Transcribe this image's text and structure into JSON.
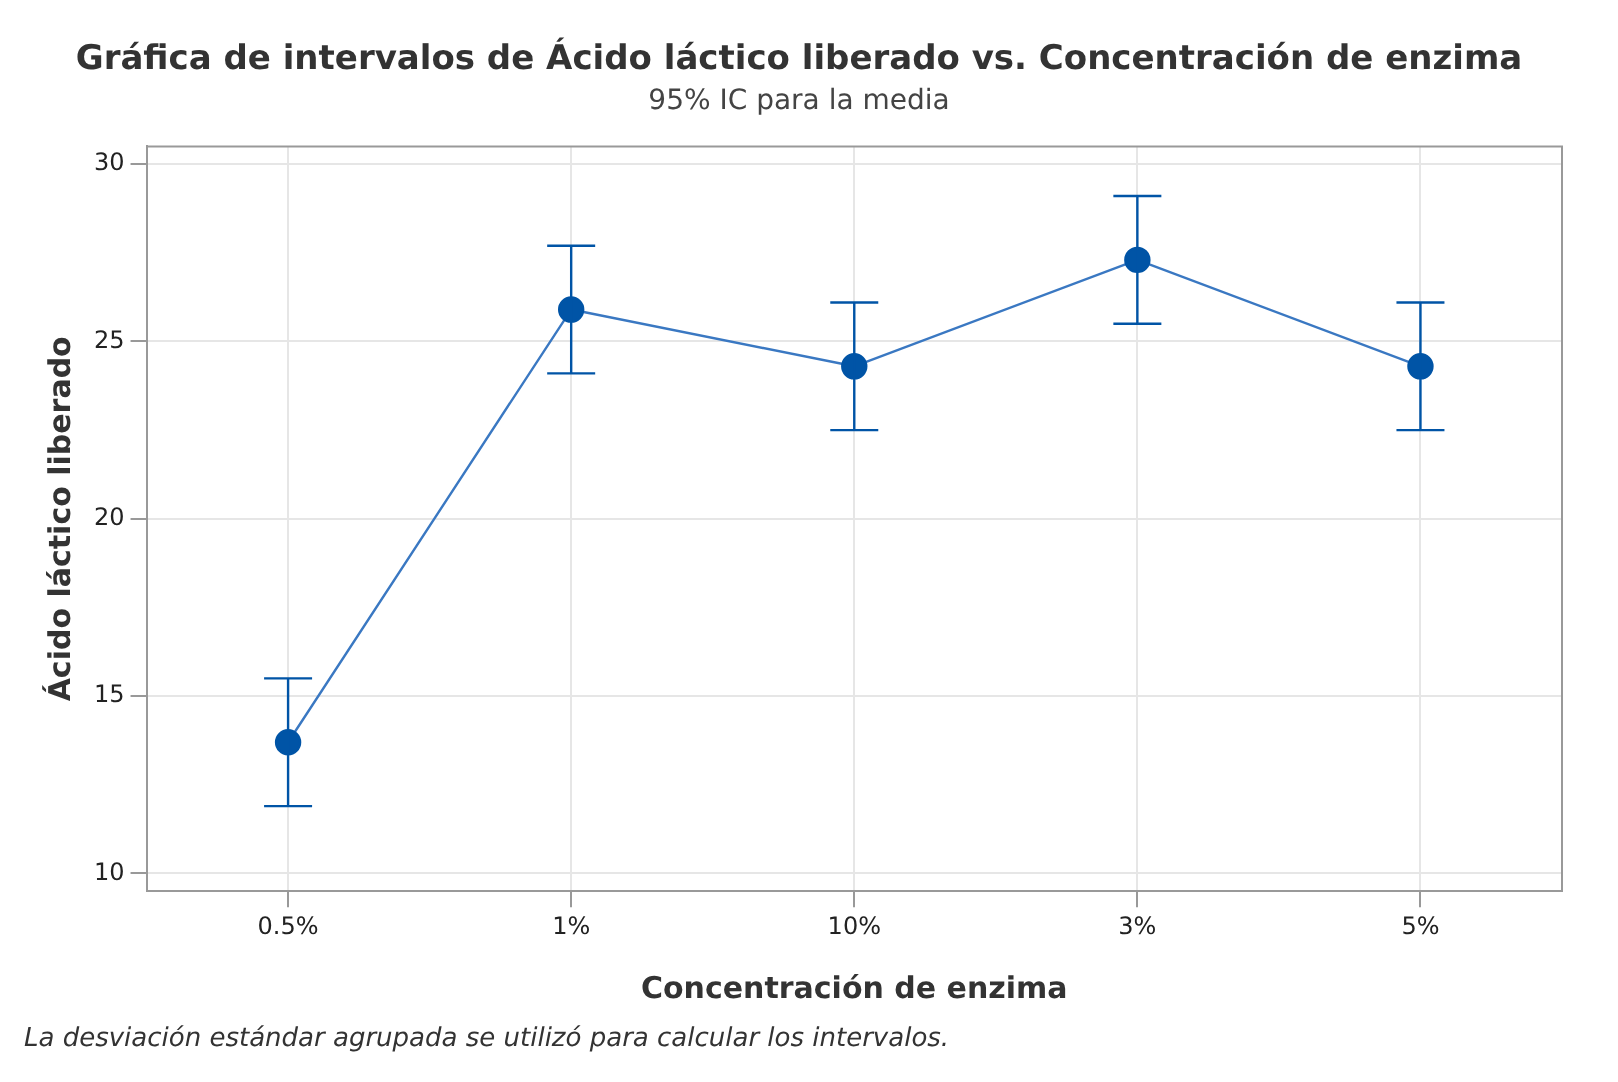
{
  "chart_data": {
    "type": "line",
    "title": "Gráfica de intervalos de Ácido láctico liberado vs. Concentración de enzima",
    "subtitle": "95% IC para la media",
    "xlabel": "Concentración de enzima",
    "ylabel": "Ácido láctico liberado",
    "categories": [
      "0.5%",
      "1%",
      "10%",
      "3%",
      "5%"
    ],
    "series": [
      {
        "color": "#0054a6",
        "values": [
          13.7,
          25.9,
          24.3,
          27.3,
          24.3
        ],
        "errors": [
          1.8,
          1.8,
          1.8,
          1.8,
          1.8
        ]
      }
    ],
    "ylim": [
      9.5,
      30.5
    ],
    "yticks": [
      10,
      15,
      20,
      25,
      30
    ],
    "grid": true,
    "marker": "circle",
    "line_style": "solid",
    "legend": false,
    "annotations": [
      "La desviación estándar agrupada se utilizó para calcular los intervalos."
    ]
  }
}
